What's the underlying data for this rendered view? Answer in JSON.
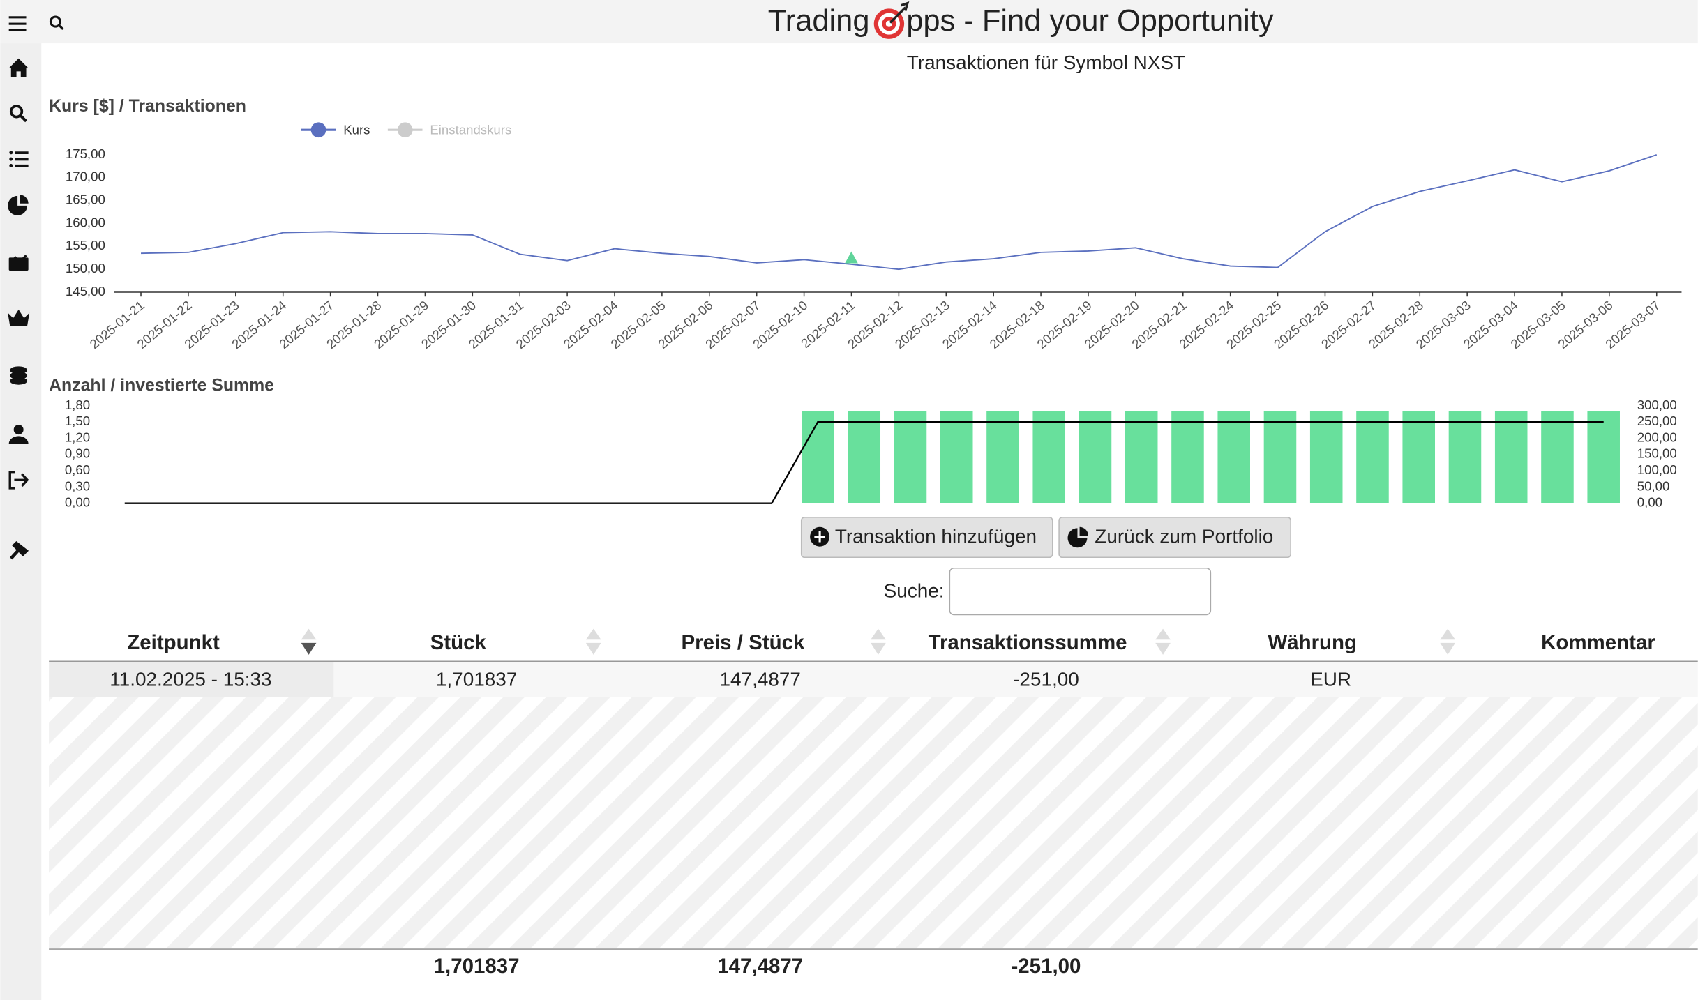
{
  "header": {
    "title_left": "Trading",
    "title_right": "pps - Find your Opportunity"
  },
  "page_title": "Transaktionen für Symbol NXST",
  "price_chart": {
    "type": "line",
    "title": "Kurs [$] / Transaktionen",
    "categories": [
      "2025-01-21",
      "2025-01-22",
      "2025-01-23",
      "2025-01-24",
      "2025-01-27",
      "2025-01-28",
      "2025-01-29",
      "2025-01-30",
      "2025-01-31",
      "2025-02-03",
      "2025-02-04",
      "2025-02-05",
      "2025-02-06",
      "2025-02-07",
      "2025-02-10",
      "2025-02-11",
      "2025-02-12",
      "2025-02-13",
      "2025-02-14",
      "2025-02-18",
      "2025-02-19",
      "2025-02-20",
      "2025-02-21",
      "2025-02-24",
      "2025-02-25",
      "2025-02-26",
      "2025-02-27",
      "2025-02-28",
      "2025-03-03",
      "2025-03-04",
      "2025-03-05",
      "2025-03-06",
      "2025-03-07"
    ],
    "series": [
      {
        "name": "Kurs",
        "color": "#5a6fbf",
        "values": [
          153.5,
          153.7,
          155.6,
          158.0,
          158.2,
          157.8,
          157.8,
          157.5,
          153.3,
          151.9,
          154.5,
          153.5,
          152.8,
          151.4,
          152.1,
          151.1,
          150.0,
          151.6,
          152.3,
          153.7,
          154.0,
          154.7,
          152.3,
          150.7,
          150.4,
          158.2,
          163.7,
          167.0,
          169.3,
          171.7,
          169.1,
          171.5,
          175.0
        ]
      }
    ],
    "hidden_series": [
      {
        "name": "Einstandskurs",
        "color": "#cccccc"
      }
    ],
    "markers": {
      "color": "#5fd49a",
      "categories": [
        "2025-02-11"
      ],
      "values": [
        152.5
      ]
    },
    "ylim": [
      145,
      175
    ],
    "yticks": [
      {
        "value": 145,
        "label": "145,00"
      },
      {
        "value": 150,
        "label": "150,00"
      },
      {
        "value": 155,
        "label": "155,00"
      },
      {
        "value": 160,
        "label": "160,00"
      },
      {
        "value": 165,
        "label": "165,00"
      },
      {
        "value": 170,
        "label": "170,00"
      },
      {
        "value": 175,
        "label": "175,00"
      }
    ]
  },
  "count_chart": {
    "type": "bar",
    "title": "Anzahl / investierte Summe",
    "series": [
      {
        "type": "bar",
        "color": "#68e09c",
        "values": [
          null,
          null,
          null,
          null,
          null,
          null,
          null,
          null,
          null,
          null,
          null,
          null,
          null,
          null,
          null,
          1.701837,
          1.701837,
          1.701837,
          1.701837,
          1.701837,
          1.701837,
          1.701837,
          1.701837,
          1.701837,
          1.701837,
          1.701837,
          1.701837,
          1.701837,
          1.701837,
          1.701837,
          1.701837,
          1.701837,
          1.701837
        ]
      },
      {
        "type": "line",
        "axis": "y2",
        "color": "#000000",
        "values": [
          0,
          0,
          0,
          0,
          0,
          0,
          0,
          0,
          0,
          0,
          0,
          0,
          0,
          0,
          0,
          251,
          251,
          251,
          251,
          251,
          251,
          251,
          251,
          251,
          251,
          251,
          251,
          251,
          251,
          251,
          251,
          251,
          251
        ]
      }
    ],
    "ylim": [
      0,
      1.8
    ],
    "yticks": [
      {
        "value": 0,
        "label": "0,00"
      },
      {
        "value": 0.3,
        "label": "0,30"
      },
      {
        "value": 0.6,
        "label": "0,60"
      },
      {
        "value": 0.9,
        "label": "0,90"
      },
      {
        "value": 1.2,
        "label": "1,20"
      },
      {
        "value": 1.5,
        "label": "1,50"
      },
      {
        "value": 1.8,
        "label": "1,80"
      }
    ],
    "y2lim": [
      0,
      300
    ],
    "y2ticks": [
      {
        "value": 0,
        "label": "0,00"
      },
      {
        "value": 50,
        "label": "50,00"
      },
      {
        "value": 100,
        "label": "100,00"
      },
      {
        "value": 150,
        "label": "150,00"
      },
      {
        "value": 200,
        "label": "200,00"
      },
      {
        "value": 250,
        "label": "250,00"
      },
      {
        "value": 300,
        "label": "300,00"
      }
    ]
  },
  "buttons": [
    "Transaktion hinzufügen",
    "Zurück zum Portfolio"
  ],
  "search_label": "Suche:",
  "table": {
    "columns": [
      "Zeitpunkt",
      "Stück",
      "Preis / Stück",
      "Transaktionssumme",
      "Währung",
      "Kommentar"
    ],
    "rows": [
      [
        "11.02.2025 - 15:33",
        "1,701837",
        "147,4877",
        "-251,00",
        "EUR"
      ]
    ],
    "totals": [
      "1,701837",
      "147,4877",
      "-251,00"
    ]
  }
}
